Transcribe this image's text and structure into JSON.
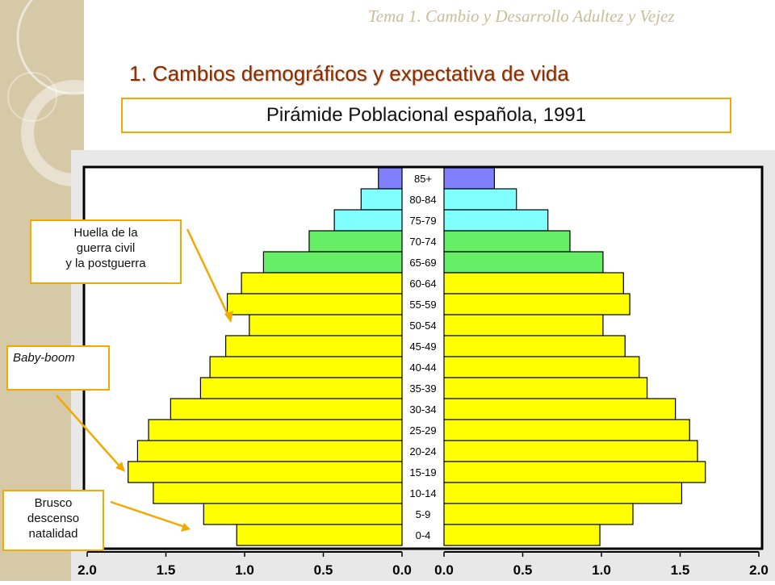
{
  "header": {
    "title": "Tema 1. Cambio y Desarrollo Adultez y Vejez",
    "section_title": "1. Cambios demográficos y expectativa de vida"
  },
  "chart_title": "Pirámide Poblacional española, 1991",
  "callouts": [
    {
      "lines": [
        "Huella de la",
        "guerra civil",
        "y la postguerra"
      ]
    },
    {
      "lines": [
        "Baby-boom"
      ]
    },
    {
      "lines": [
        "Brusco",
        "descenso",
        "natalidad"
      ]
    }
  ],
  "colors": {
    "yellow": "#ffff00",
    "green": "#66ee66",
    "cyan": "#80ffff",
    "blue": "#8080ff",
    "callout_border": "#f2a900",
    "arrow": "#f2a900"
  },
  "chart_data": {
    "type": "bar",
    "orientation": "horizontal-pyramid",
    "categories": [
      "85+",
      "80-84",
      "75-79",
      "70-74",
      "65-69",
      "60-64",
      "55-59",
      "50-54",
      "45-49",
      "40-44",
      "35-39",
      "30-34",
      "25-29",
      "20-24",
      "15-19",
      "10-14",
      "5-9",
      "0-4"
    ],
    "series": [
      {
        "side": "left",
        "values": [
          0.15,
          0.26,
          0.43,
          0.59,
          0.88,
          1.02,
          1.11,
          0.97,
          1.12,
          1.22,
          1.28,
          1.47,
          1.61,
          1.68,
          1.74,
          1.58,
          1.26,
          1.05
        ]
      },
      {
        "side": "right",
        "values": [
          0.32,
          0.46,
          0.66,
          0.8,
          1.01,
          1.14,
          1.18,
          1.01,
          1.15,
          1.24,
          1.29,
          1.47,
          1.56,
          1.61,
          1.66,
          1.51,
          1.2,
          0.99
        ]
      }
    ],
    "bar_colors": [
      "blue",
      "cyan",
      "cyan",
      "green",
      "green",
      "yellow",
      "yellow",
      "yellow",
      "yellow",
      "yellow",
      "yellow",
      "yellow",
      "yellow",
      "yellow",
      "yellow",
      "yellow",
      "yellow",
      "yellow"
    ],
    "xlim": [
      0,
      2.0
    ],
    "xticks": [
      "2.0",
      "1.5",
      "1.0",
      "0.5",
      "0.0"
    ],
    "xticks_right": [
      "0.0",
      "0.5",
      "1.0",
      "1.5",
      "2.0"
    ]
  }
}
